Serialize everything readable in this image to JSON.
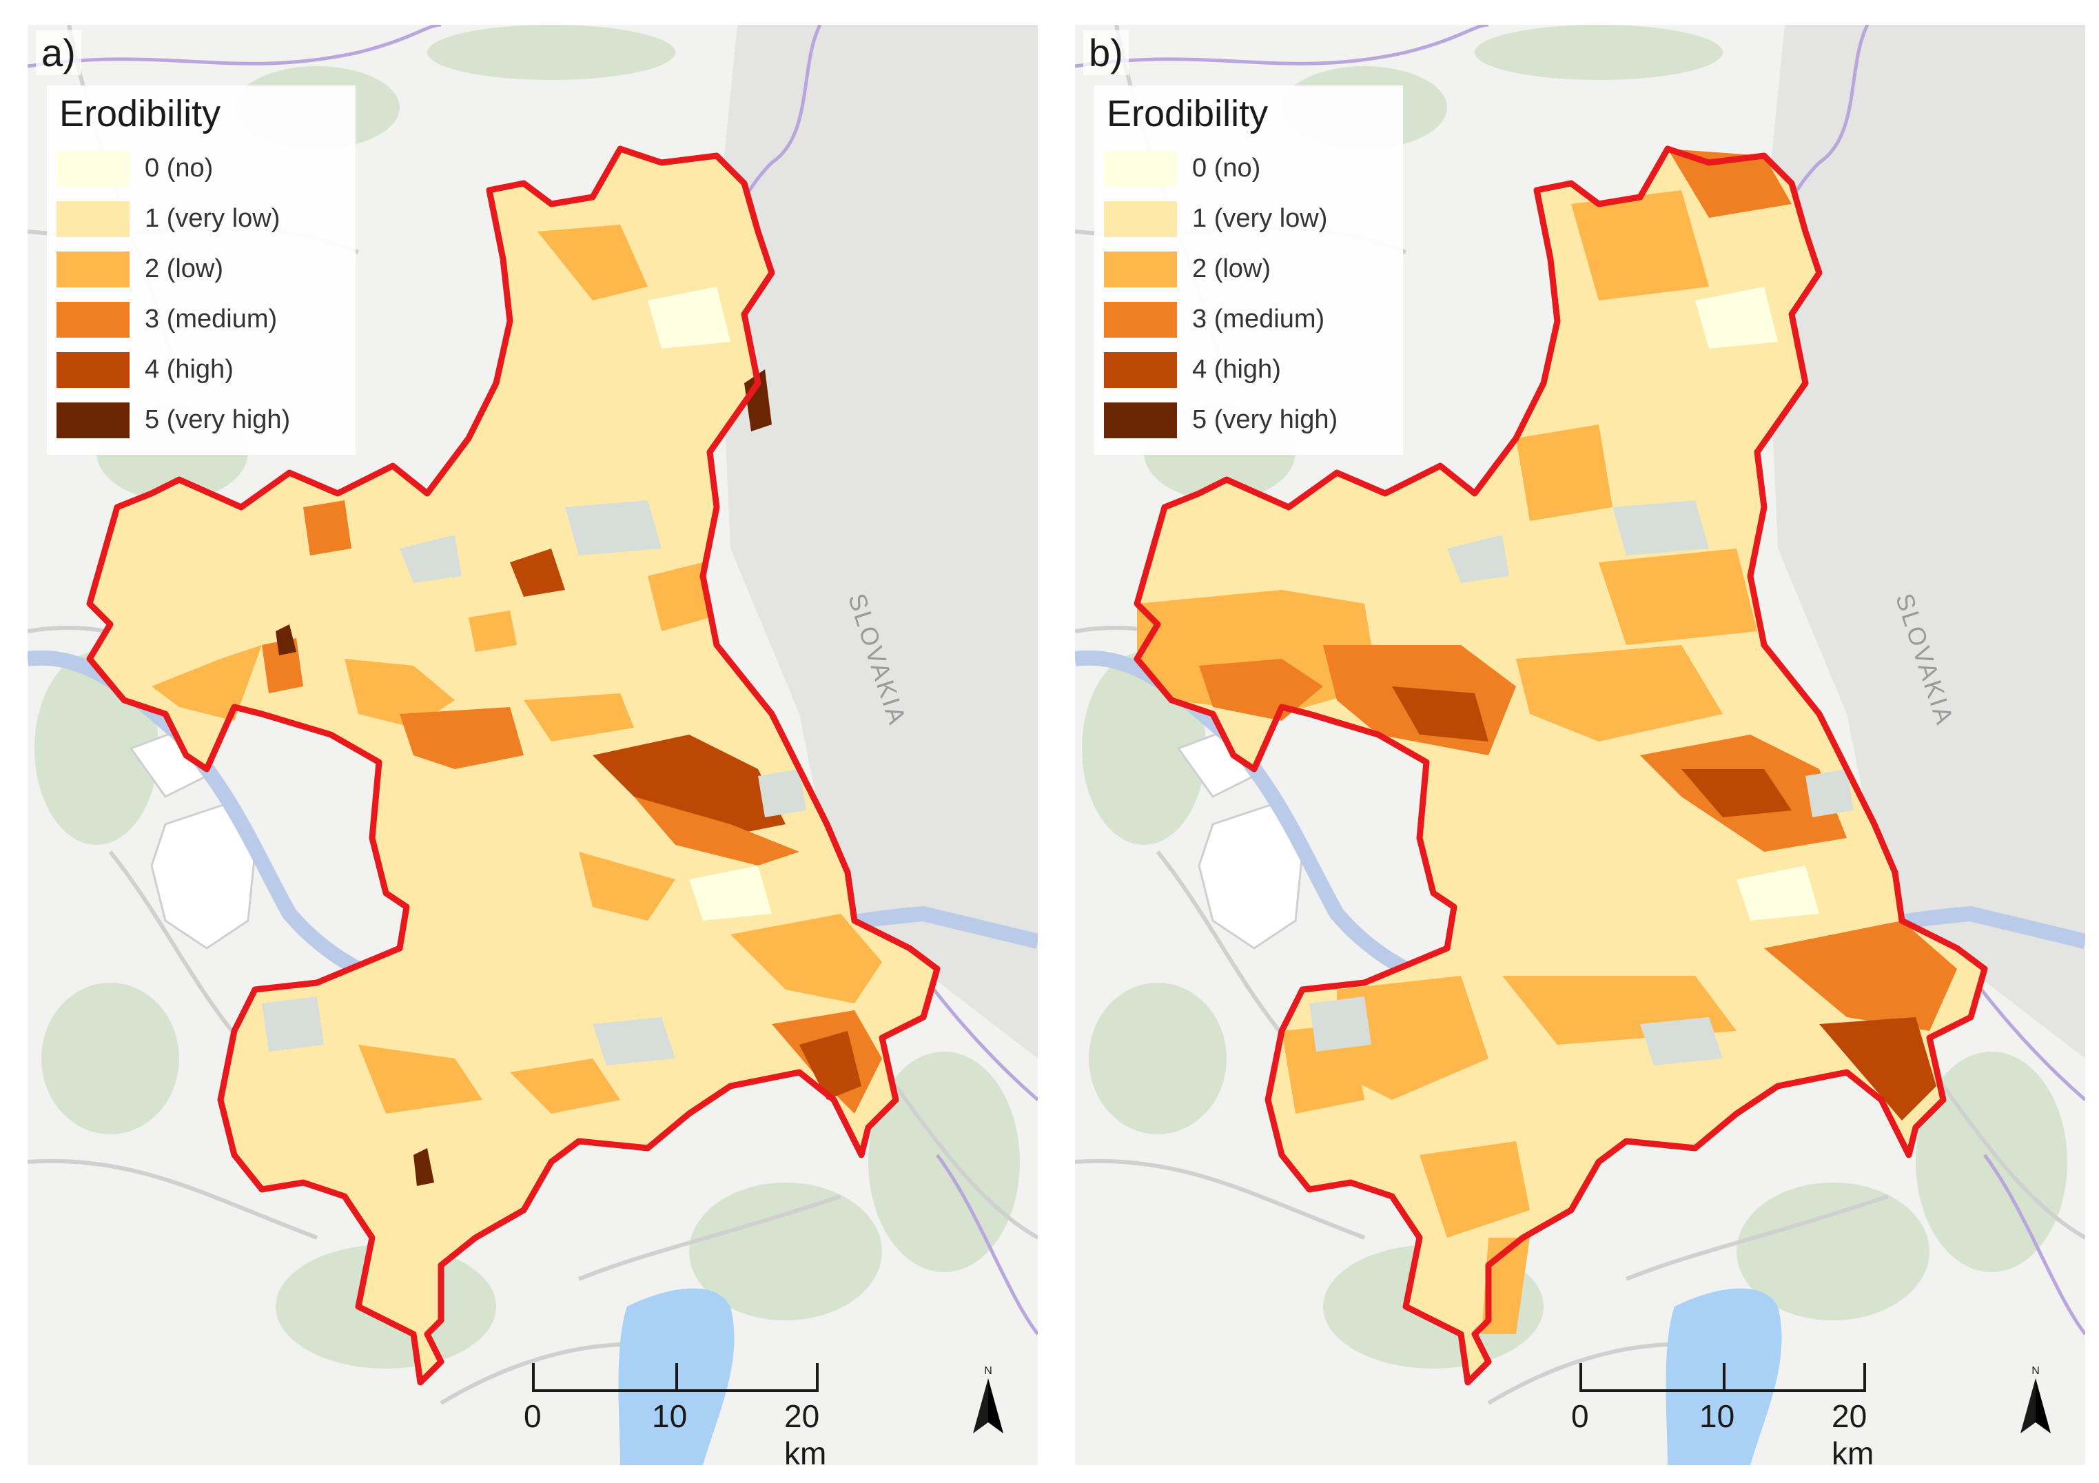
{
  "panels": [
    {
      "letter": "a)",
      "legend_title": "Erodibility",
      "legend": [
        {
          "label": "0 (no)",
          "color": "#ffffe1"
        },
        {
          "label": "1 (very low)",
          "color": "#ffe9a8"
        },
        {
          "label": "2 (low)",
          "color": "#fdb74a"
        },
        {
          "label": "3 (medium)",
          "color": "#f07e22"
        },
        {
          "label": "4 (high)",
          "color": "#bd4705"
        },
        {
          "label": "5 (very high)",
          "color": "#6a2600"
        }
      ],
      "country_label": "SLOVAKIA",
      "scale_labels": [
        "0",
        "10",
        "20 km"
      ],
      "north_label": "N"
    },
    {
      "letter": "b)",
      "legend_title": "Erodibility",
      "legend": [
        {
          "label": "0 (no)",
          "color": "#ffffe1"
        },
        {
          "label": "1 (very low)",
          "color": "#ffe9a8"
        },
        {
          "label": "2 (low)",
          "color": "#fdb74a"
        },
        {
          "label": "3 (medium)",
          "color": "#f07e22"
        },
        {
          "label": "4 (high)",
          "color": "#bd4705"
        },
        {
          "label": "5 (very high)",
          "color": "#6a2600"
        }
      ],
      "country_label": "SLOVAKIA",
      "scale_labels": [
        "0",
        "10",
        "20 km"
      ],
      "north_label": "N"
    }
  ],
  "colors": {
    "region_outline": "#e8191c",
    "river": "#b9cbe8",
    "lake": "#a9d0f5",
    "basemap": "#f2f2f0",
    "forest": "#d6e4cf",
    "border": "#b9a6dc"
  }
}
